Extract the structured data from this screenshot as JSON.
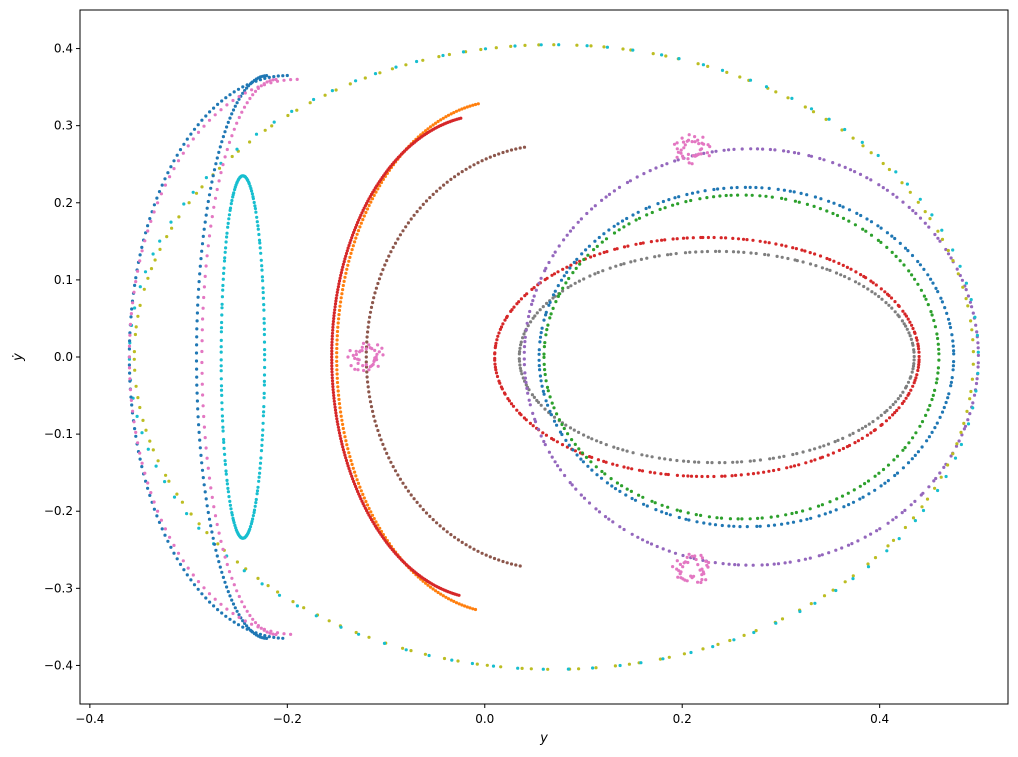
{
  "chart_data": {
    "type": "scatter",
    "title": "",
    "xlabel": "y",
    "ylabel": "ẏ",
    "xlim": [
      -0.41,
      0.53
    ],
    "ylim": [
      -0.45,
      0.45
    ],
    "x_ticks": [
      "−0.4",
      "−0.2",
      "0.0",
      "0.2",
      "0.4"
    ],
    "x_tick_values": [
      -0.4,
      -0.2,
      0.0,
      0.2,
      0.4
    ],
    "y_ticks": [
      "−0.4",
      "−0.3",
      "−0.2",
      "−0.1",
      "0.0",
      "0.1",
      "0.2",
      "0.3",
      "0.4"
    ],
    "y_tick_values": [
      -0.4,
      -0.3,
      -0.2,
      -0.1,
      0.0,
      0.1,
      0.2,
      0.3,
      0.4
    ],
    "grid": false,
    "legend": "none",
    "series": [
      {
        "color": "#17becf",
        "shape": "ellipse",
        "cx": -0.245,
        "cy": 0.0,
        "rx": 0.022,
        "ry": 0.235,
        "points": 180
      },
      {
        "color": "#7f7f7f",
        "shape": "ellipse",
        "cx": 0.235,
        "cy": 0.0,
        "rx": 0.2,
        "ry": 0.137,
        "points": 200
      },
      {
        "color": "#d62728",
        "shape": "ellipse",
        "cx": 0.225,
        "cy": 0.0,
        "rx": 0.215,
        "ry": 0.155,
        "points": 240
      },
      {
        "color": "#2ca02c",
        "shape": "ellipse",
        "cx": 0.26,
        "cy": 0.0,
        "rx": 0.2,
        "ry": 0.21,
        "points": 180
      },
      {
        "color": "#1f77b4",
        "shape": "ellipse",
        "cx": 0.265,
        "cy": 0.0,
        "rx": 0.21,
        "ry": 0.22,
        "points": 200
      },
      {
        "color": "#9467bd",
        "shape": "ellipse",
        "cx": 0.27,
        "cy": 0.0,
        "rx": 0.23,
        "ry": 0.27,
        "points": 220
      },
      {
        "color": "#bcbd22",
        "shape": "ellipse",
        "cx": 0.07,
        "cy": 0.0,
        "rx": 0.425,
        "ry": 0.405,
        "points": 170
      },
      {
        "color": "#17becf",
        "shape": "ellipse",
        "cx": 0.07,
        "cy": 0.0,
        "rx": 0.43,
        "ry": 0.405,
        "points": 110
      },
      {
        "color": "#1f77b4",
        "shape": "crescent",
        "cx": -0.2,
        "cy": 0.0,
        "rx": 0.16,
        "ry": 0.365,
        "points": 220
      },
      {
        "color": "#e377c2",
        "shape": "crescent",
        "cx": -0.19,
        "cy": 0.0,
        "rx": 0.17,
        "ry": 0.36,
        "points": 160
      },
      {
        "color": "#ff7f0e",
        "shape": "arc",
        "cx": 0.02,
        "cy": 0.0,
        "rx": 0.17,
        "ry": 0.35,
        "points": 170
      },
      {
        "color": "#d62728",
        "shape": "arc",
        "cx": 0.0,
        "cy": 0.0,
        "rx": 0.155,
        "ry": 0.33,
        "points": 230
      },
      {
        "color": "#8c564b",
        "shape": "arc",
        "cx": 0.07,
        "cy": 0.0,
        "rx": 0.19,
        "ry": 0.29,
        "points": 120
      },
      {
        "color": "#e377c2",
        "shape": "hyperbolic",
        "points_x": [
          -0.12,
          0.21,
          0.21
        ],
        "points_y": [
          0.0,
          0.27,
          -0.275
        ],
        "points": 40
      }
    ]
  }
}
